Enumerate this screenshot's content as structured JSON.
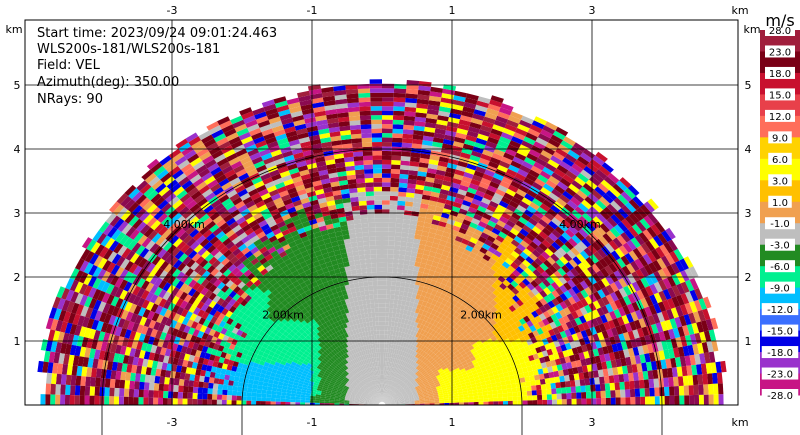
{
  "chart_data": {
    "type": "heatmap",
    "subtype": "radar-rhi-velocity",
    "info": {
      "start_time": "Start time: 2023/09/24 09:01:24.463",
      "instrument": "WLS200s-181/WLS200s-181",
      "field": "Field: VEL",
      "azimuth": "Azimuth(deg): 350.00",
      "nrays": "NRays: 90"
    },
    "x_axis": {
      "unit": "km",
      "ticks": [
        -3,
        -1,
        1,
        3
      ],
      "range": [
        -5.5,
        5.5
      ]
    },
    "y_axis": {
      "unit": "km",
      "ticks": [
        1,
        2,
        3,
        4,
        5
      ],
      "range": [
        0,
        5.9
      ]
    },
    "range_rings": [
      {
        "radius_km": 2,
        "label": "2.00km"
      },
      {
        "radius_km": 4,
        "label": "4.00km"
      }
    ],
    "max_range_km": 5.05,
    "colorbar": {
      "unit": "m/s",
      "levels": [
        {
          "label": "28.0",
          "color": "#a01e3c"
        },
        {
          "label": "23.0",
          "color": "#7a0016"
        },
        {
          "label": "18.0",
          "color": "#c8102e"
        },
        {
          "label": "15.0",
          "color": "#e8404a"
        },
        {
          "label": "12.0",
          "color": "#ff6e5a"
        },
        {
          "label": "9.0",
          "color": "#ffd200"
        },
        {
          "label": "6.0",
          "color": "#ffff00"
        },
        {
          "label": "3.0",
          "color": "#ffc000"
        },
        {
          "label": "1.0",
          "color": "#f0a050"
        },
        {
          "label": "-1.0",
          "color": "#bebebe"
        },
        {
          "label": "-3.0",
          "color": "#228b22"
        },
        {
          "label": "-6.0",
          "color": "#00f090"
        },
        {
          "label": "-9.0",
          "color": "#00bfff"
        },
        {
          "label": "-12.0",
          "color": "#3a6fff"
        },
        {
          "label": "-15.0",
          "color": "#0000e6"
        },
        {
          "label": "-18.0",
          "color": "#9932cc"
        },
        {
          "label": "-23.0",
          "color": "#c71585"
        },
        {
          "label": "-28.0",
          "color": "#8b0a50"
        }
      ]
    }
  }
}
